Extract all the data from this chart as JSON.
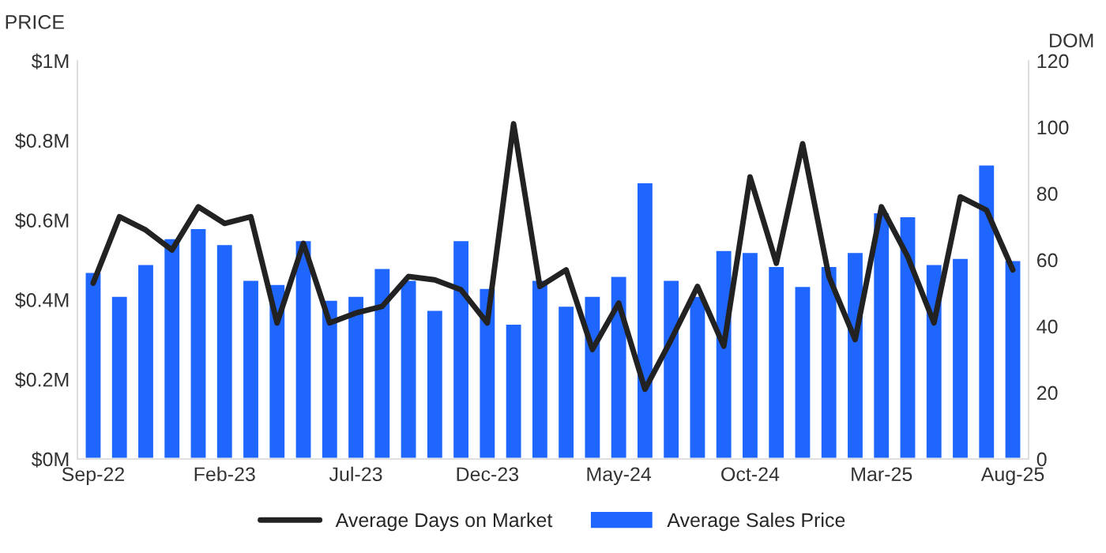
{
  "chart_data": {
    "type": "bar",
    "ylabel": "PRICE",
    "y2label": "DOM",
    "categories": [
      "Sep-22",
      null,
      null,
      null,
      null,
      "Feb-23",
      null,
      null,
      null,
      null,
      "Jul-23",
      null,
      null,
      null,
      null,
      "Dec-23",
      null,
      null,
      null,
      null,
      "May-24",
      null,
      null,
      null,
      null,
      "Oct-24",
      null,
      null,
      null,
      null,
      "Mar-25",
      null,
      null,
      null,
      null,
      "Aug-25"
    ],
    "series": [
      {
        "name": "Average Days on Market",
        "type": "line",
        "axis": "y2",
        "color": "#222222",
        "values": [
          53,
          73,
          69,
          63,
          76,
          71,
          73,
          41,
          65,
          41,
          44,
          46,
          55,
          54,
          51,
          41,
          101,
          52,
          57,
          33,
          47,
          21,
          36,
          52,
          34,
          85,
          59,
          95,
          55,
          36,
          76,
          61,
          41,
          79,
          75,
          57
        ]
      },
      {
        "name": "Average Sales Price",
        "color": "#1f66ff",
        "values": [
          0.47,
          0.41,
          0.49,
          0.555,
          0.58,
          0.54,
          0.45,
          0.44,
          0.55,
          0.4,
          0.41,
          0.48,
          0.45,
          0.375,
          0.55,
          0.43,
          0.34,
          0.45,
          0.385,
          0.41,
          0.46,
          0.695,
          0.45,
          0.41,
          0.525,
          0.52,
          0.485,
          0.435,
          0.485,
          0.52,
          0.62,
          0.61,
          0.49,
          0.505,
          0.74,
          0.5
        ]
      }
    ],
    "ylim": [
      0,
      1
    ],
    "yticks": [
      {
        "value": 0,
        "label": "$0M"
      },
      {
        "value": 0.2,
        "label": "$0.2M"
      },
      {
        "value": 0.4,
        "label": "$0.4M"
      },
      {
        "value": 0.6,
        "label": "$0.6M"
      },
      {
        "value": 0.8,
        "label": "$0.8M"
      },
      {
        "value": 1,
        "label": "$1M"
      }
    ],
    "y2lim": [
      0,
      120
    ],
    "y2ticks": [
      0,
      20,
      40,
      60,
      80,
      100,
      120
    ],
    "grid": false,
    "legend": "bottom",
    "marker": "none",
    "line_style": "solid"
  }
}
